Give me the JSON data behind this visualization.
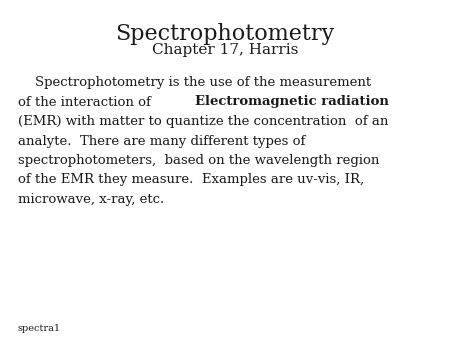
{
  "title": "Spectrophotometry",
  "subtitle": "Chapter 17, Harris",
  "footer": "spectra1",
  "bg_color": "#ffffff",
  "text_color": "#1a1a1a",
  "title_fontsize": 16,
  "subtitle_fontsize": 11,
  "body_fontsize": 9.5,
  "footer_fontsize": 7,
  "line1": "    Spectrophotometry is the use of the measurement",
  "line2_normal": "of the interaction of ",
  "line2_bold": "Electromagnetic radiation",
  "line3": "(EMR) with matter to quantize the concentration  of an",
  "line4": "analyte.  There are many different types of",
  "line5": "spectrophotometers,  based on the wavelength region",
  "line6": "of the EMR they measure.  Examples are uv-vis, IR,",
  "line7": "microwave, x-ray, etc."
}
